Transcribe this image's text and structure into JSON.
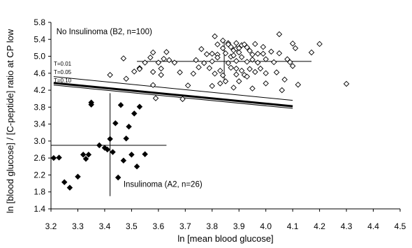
{
  "chart_data": {
    "type": "scatter",
    "xlabel": "ln [mean blood glucose]",
    "ylabel": "ln [blood glucose] / [C-peptide] ratio at CP low",
    "xlim": [
      3.2,
      4.5
    ],
    "ylim": [
      1.4,
      5.8
    ],
    "xticks": [
      "3.2",
      "3.3",
      "3.4",
      "3.5",
      "3.6",
      "3.7",
      "3.8",
      "3.9",
      "4.0",
      "4.1",
      "4.2",
      "4.3",
      "4.4",
      "4.5"
    ],
    "yticks": [
      "1.4",
      "1.8",
      "2.2",
      "2.6",
      "3.0",
      "3.4",
      "3.8",
      "4.2",
      "4.6",
      "5.0",
      "5.4",
      "5.8"
    ],
    "grid": false,
    "legend": "none",
    "series": [
      {
        "name": "No Insulinoma (B2, n=100)",
        "marker": "open-diamond",
        "color": "#000000",
        "points": [
          [
            3.47,
            4.95
          ],
          [
            3.42,
            4.56
          ],
          [
            3.48,
            4.47
          ],
          [
            3.51,
            4.64
          ],
          [
            3.53,
            4.72
          ],
          [
            3.53,
            4.7
          ],
          [
            3.55,
            4.85
          ],
          [
            3.57,
            4.97
          ],
          [
            3.58,
            5.09
          ],
          [
            3.58,
            4.63
          ],
          [
            3.58,
            4.32
          ],
          [
            3.59,
            4.01
          ],
          [
            3.6,
            4.85
          ],
          [
            3.61,
            4.56
          ],
          [
            3.61,
            4.71
          ],
          [
            3.62,
            4.94
          ],
          [
            3.63,
            5.1
          ],
          [
            3.64,
            4.91
          ],
          [
            3.66,
            4.85
          ],
          [
            3.68,
            4.62
          ],
          [
            3.69,
            3.99
          ],
          [
            3.71,
            4.31
          ],
          [
            3.73,
            4.59
          ],
          [
            3.74,
            4.91
          ],
          [
            3.75,
            4.74
          ],
          [
            3.76,
            5.17
          ],
          [
            3.77,
            4.84
          ],
          [
            3.78,
            5.05
          ],
          [
            3.79,
            4.72
          ],
          [
            3.8,
            4.3
          ],
          [
            3.8,
            4.88
          ],
          [
            3.8,
            5.06
          ],
          [
            3.81,
            5.47
          ],
          [
            3.81,
            4.59
          ],
          [
            3.82,
            5.28
          ],
          [
            3.82,
            5.04
          ],
          [
            3.82,
            4.97
          ],
          [
            3.83,
            4.66
          ],
          [
            3.83,
            4.36
          ],
          [
            3.84,
            5.37
          ],
          [
            3.84,
            5.19
          ],
          [
            3.84,
            4.55
          ],
          [
            3.85,
            5.07
          ],
          [
            3.85,
            4.41
          ],
          [
            3.86,
            4.84
          ],
          [
            3.86,
            5.31
          ],
          [
            3.86,
            5.28
          ],
          [
            3.87,
            5.22
          ],
          [
            3.87,
            4.99
          ],
          [
            3.87,
            4.73
          ],
          [
            3.88,
            5.14
          ],
          [
            3.88,
            5.02
          ],
          [
            3.88,
            4.26
          ],
          [
            3.89,
            5.31
          ],
          [
            3.89,
            5.18
          ],
          [
            3.89,
            4.89
          ],
          [
            3.89,
            4.57
          ],
          [
            3.89,
            4.71
          ],
          [
            3.9,
            5.19
          ],
          [
            3.9,
            5.09
          ],
          [
            3.9,
            4.41
          ],
          [
            3.91,
            4.98
          ],
          [
            3.91,
            5.26
          ],
          [
            3.91,
            4.66
          ],
          [
            3.92,
            5.28
          ],
          [
            3.92,
            4.56
          ],
          [
            3.93,
            5.21
          ],
          [
            3.93,
            4.87
          ],
          [
            3.93,
            4.52
          ],
          [
            3.94,
            5.13
          ],
          [
            3.94,
            4.7
          ],
          [
            3.95,
            5.04
          ],
          [
            3.95,
            4.92
          ],
          [
            3.95,
            4.24
          ],
          [
            3.96,
            5.29
          ],
          [
            3.96,
            4.63
          ],
          [
            3.97,
            5.06
          ],
          [
            3.97,
            4.85
          ],
          [
            3.98,
            4.71
          ],
          [
            3.99,
            5.22
          ],
          [
            3.99,
            5.06
          ],
          [
            4.0,
            4.93
          ],
          [
            4.0,
            4.6
          ],
          [
            4.0,
            4.36
          ],
          [
            4.02,
            5.11
          ],
          [
            4.03,
            4.86
          ],
          [
            4.04,
            4.62
          ],
          [
            4.05,
            5.07
          ],
          [
            4.05,
            5.52
          ],
          [
            4.06,
            4.2
          ],
          [
            4.07,
            4.45
          ],
          [
            4.08,
            4.93
          ],
          [
            4.09,
            4.86
          ],
          [
            4.1,
            5.3
          ],
          [
            4.1,
            4.77
          ],
          [
            4.11,
            5.19
          ],
          [
            4.12,
            4.33
          ],
          [
            4.17,
            5.09
          ],
          [
            4.2,
            5.29
          ],
          [
            4.3,
            4.35
          ]
        ]
      },
      {
        "name": "Insulinoma (A2, n=26)",
        "marker": "filled-diamond",
        "color": "#000000",
        "points": [
          [
            3.21,
            2.6
          ],
          [
            3.23,
            2.61
          ],
          [
            3.25,
            2.03
          ],
          [
            3.27,
            1.9
          ],
          [
            3.3,
            2.16
          ],
          [
            3.32,
            2.68
          ],
          [
            3.33,
            2.58
          ],
          [
            3.34,
            2.68
          ],
          [
            3.35,
            3.91
          ],
          [
            3.35,
            3.86
          ],
          [
            3.38,
            2.9
          ],
          [
            3.4,
            2.84
          ],
          [
            3.41,
            2.8
          ],
          [
            3.42,
            3.05
          ],
          [
            3.43,
            2.74
          ],
          [
            3.44,
            3.42
          ],
          [
            3.45,
            2.14
          ],
          [
            3.46,
            3.85
          ],
          [
            3.47,
            2.54
          ],
          [
            3.48,
            3.06
          ],
          [
            3.49,
            3.34
          ],
          [
            3.5,
            2.68
          ],
          [
            3.51,
            3.65
          ],
          [
            3.52,
            2.4
          ],
          [
            3.53,
            3.81
          ],
          [
            3.55,
            2.69
          ]
        ]
      }
    ],
    "crosshairs": [
      {
        "center": [
          3.845,
          4.88
        ],
        "x_range": [
          3.52,
          4.17
        ],
        "y_range": [
          4.38,
          5.35
        ]
      },
      {
        "center": [
          3.42,
          2.9
        ],
        "x_range": [
          3.2,
          3.63
        ],
        "y_range": [
          1.7,
          4.13
        ]
      }
    ],
    "lines": [
      {
        "label": "T=0.01",
        "x_range": [
          3.21,
          4.1
        ],
        "y_range": [
          4.52,
          3.96
        ],
        "weight": "thin"
      },
      {
        "label": "T=0.05",
        "x_range": [
          3.21,
          4.1
        ],
        "y_range": [
          4.37,
          3.82
        ],
        "weight": "bold"
      },
      {
        "label": "T=0.10",
        "x_range": [
          3.21,
          4.1
        ],
        "y_range": [
          4.32,
          3.77
        ],
        "weight": "thin"
      }
    ],
    "annotations": [
      {
        "text": "No Insulinoma (B2, n=100)",
        "x": 3.22,
        "y": 5.52
      },
      {
        "text": "Insulinoma (A2, n=26)",
        "x": 3.47,
        "y": 1.92
      }
    ]
  }
}
